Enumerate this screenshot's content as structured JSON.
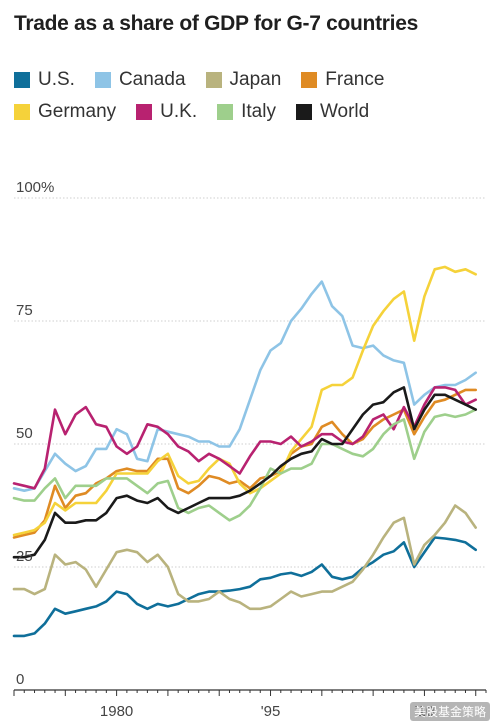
{
  "chart_data": {
    "type": "line",
    "title": "Trade as a share of GDP for G-7 countries",
    "xlabel": "",
    "ylabel": "",
    "xlim": [
      1970,
      2016
    ],
    "ylim": [
      0,
      100
    ],
    "y_ticks": [
      {
        "value": 0,
        "label": "0"
      },
      {
        "value": 25,
        "label": "25"
      },
      {
        "value": 50,
        "label": "50"
      },
      {
        "value": 75,
        "label": "75"
      },
      {
        "value": 100,
        "label": "100%"
      }
    ],
    "x_ticks": [
      {
        "value": 1980,
        "label": "1980"
      },
      {
        "value": 1995,
        "label": "'95"
      },
      {
        "value": 2010,
        "label": "'10"
      }
    ],
    "grid": true,
    "legend_position": "top",
    "x": [
      1970,
      1971,
      1972,
      1973,
      1974,
      1975,
      1976,
      1977,
      1978,
      1979,
      1980,
      1981,
      1982,
      1983,
      1984,
      1985,
      1986,
      1987,
      1988,
      1989,
      1990,
      1991,
      1992,
      1993,
      1994,
      1995,
      1996,
      1997,
      1998,
      1999,
      2000,
      2001,
      2002,
      2003,
      2004,
      2005,
      2006,
      2007,
      2008,
      2009,
      2010,
      2011,
      2012,
      2013,
      2014,
      2015
    ],
    "series": [
      {
        "name": "U.S.",
        "color": "#0f6f9a",
        "values": [
          11,
          11,
          11.5,
          13.5,
          16.5,
          15.5,
          16,
          16.5,
          17,
          18,
          20,
          19.5,
          17.5,
          16.5,
          17.5,
          17,
          17.5,
          18.5,
          19.5,
          20,
          20,
          20.2,
          20.5,
          21,
          22.5,
          22.8,
          23.5,
          23.8,
          23.2,
          24,
          25.5,
          23,
          22.5,
          23,
          24.8,
          26,
          27.5,
          28.2,
          30,
          25,
          28,
          31,
          30.8,
          30.5,
          30,
          28.5
        ]
      },
      {
        "name": "Canada",
        "color": "#8ec4e6",
        "values": [
          41,
          40.5,
          41,
          44.5,
          48,
          46,
          44.5,
          45.5,
          49,
          49,
          53,
          52,
          47,
          46.5,
          53,
          52.5,
          52,
          51.5,
          50.5,
          50.5,
          49.5,
          49.5,
          53,
          59,
          65,
          69,
          70.5,
          75,
          77.5,
          80.5,
          83,
          78,
          76,
          70,
          69.5,
          70,
          68,
          67,
          66.5,
          58,
          60,
          61.5,
          62,
          62,
          63,
          64.5
        ]
      },
      {
        "name": "Japan",
        "color": "#b9b37e",
        "values": [
          20.5,
          20.5,
          19.5,
          20.5,
          27.5,
          25.5,
          26,
          24.5,
          21,
          24.5,
          28,
          28.5,
          28,
          26,
          27.5,
          25,
          19.5,
          18,
          18,
          18.5,
          20,
          18.5,
          17.8,
          16.5,
          16.5,
          17,
          18.5,
          20,
          19,
          19.5,
          20,
          20,
          21,
          22,
          24.5,
          27.5,
          31,
          34,
          35,
          25.5,
          29.5,
          31.5,
          34,
          37.5,
          36,
          33
        ]
      },
      {
        "name": "France",
        "color": "#df8b24",
        "values": [
          31,
          31.5,
          32,
          34.5,
          41.5,
          37,
          39.5,
          40,
          42,
          43,
          44.5,
          45,
          44.5,
          44.5,
          47,
          47,
          41,
          40,
          41.5,
          43.5,
          43,
          42,
          42.5,
          41,
          43,
          43.5,
          44.5,
          48,
          49.5,
          50,
          53.5,
          54.5,
          52,
          50,
          51,
          53.5,
          55,
          56,
          57,
          52,
          55.5,
          58.5,
          59,
          60,
          61,
          61
        ]
      },
      {
        "name": "Germany",
        "color": "#f5d23a",
        "values": [
          31.5,
          32,
          32.5,
          34,
          38,
          36.5,
          38,
          38,
          38,
          40.5,
          44,
          44,
          44,
          44,
          46.5,
          48,
          43.5,
          42,
          42.5,
          45,
          47,
          46,
          42,
          40,
          41,
          42.5,
          44,
          48.5,
          51,
          53.5,
          61,
          62,
          62,
          63.5,
          69,
          74,
          77,
          79.5,
          81,
          71,
          80,
          85.5,
          86,
          85,
          85.5,
          84.5
        ]
      },
      {
        "name": "U.K.",
        "color": "#b82270",
        "values": [
          42,
          41.5,
          41,
          45,
          57,
          52,
          56,
          57.5,
          54,
          53.5,
          49.5,
          48,
          49.5,
          54,
          53.5,
          52,
          49.5,
          48.5,
          46.5,
          48,
          47,
          45.5,
          44,
          47.5,
          50.5,
          50.5,
          50,
          51.5,
          49.5,
          50.5,
          52,
          52,
          50.5,
          50,
          51.5,
          55,
          56,
          53,
          57.5,
          53.5,
          58,
          61.5,
          61.5,
          61,
          58,
          59
        ]
      },
      {
        "name": "Italy",
        "color": "#9ecf8c",
        "values": [
          39,
          38.5,
          38.5,
          41,
          43,
          39,
          41.5,
          41.5,
          41.5,
          43,
          43,
          43,
          41.5,
          40,
          42,
          42.5,
          37,
          36,
          37,
          37.5,
          36,
          34.5,
          35.5,
          37.5,
          41,
          45,
          44,
          45,
          45,
          46,
          50,
          50,
          49,
          48,
          47.5,
          49,
          52,
          54,
          55,
          47,
          52.5,
          55.5,
          56,
          55.5,
          56,
          57
        ]
      },
      {
        "name": "World",
        "color": "#1a1a1a",
        "values": [
          27,
          27,
          27.5,
          30.5,
          36,
          34,
          34,
          34.5,
          34.5,
          36,
          39,
          39.5,
          38.5,
          38,
          39,
          37,
          36,
          37,
          38,
          39,
          39,
          39,
          39.5,
          40.5,
          42,
          43.5,
          45.5,
          47,
          48,
          48.5,
          51,
          50,
          50,
          53,
          56,
          58,
          58.5,
          60.5,
          61.5,
          53,
          57,
          60,
          60,
          59,
          58,
          57
        ]
      }
    ]
  },
  "watermark": "美股基金策略"
}
